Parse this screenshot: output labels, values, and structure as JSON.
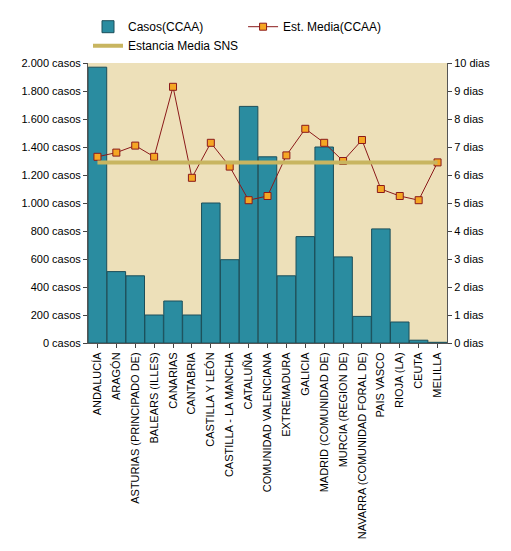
{
  "chart_data": {
    "type": "bar",
    "categories": [
      "ANDALUCÍA",
      "ARAGÓN",
      "ASTURIAS (PRINCIPADO DE)",
      "BALEARS (ILLES)",
      "CANARIAS",
      "CANTABRIA",
      "CASTILLA Y LEÓN",
      "CASTILLA - LA MANCHA",
      "CATALUÑA",
      "COMUNIDAD VALENCIANA",
      "EXTREMADURA",
      "GALICIA",
      "MADRID (COMUNIDAD DE)",
      "MURCIA (REGION DE)",
      "NAVARRA (COMUNIDAD FORAL DE)",
      "PAIS VASCO",
      "RIOJA (LA)",
      "CEUTA",
      "MELILLA"
    ],
    "series": [
      {
        "name": "Casos(CCAA)",
        "type": "bar",
        "color": "#2a8ca0",
        "values": [
          1970,
          510,
          480,
          200,
          300,
          200,
          1000,
          595,
          1690,
          1330,
          480,
          760,
          1400,
          615,
          190,
          815,
          150,
          20,
          5
        ]
      },
      {
        "name": "Est. Media(CCAA)",
        "type": "line",
        "axis": "y2",
        "color": "#8b1a1a",
        "marker": "square",
        "values": [
          6.65,
          6.8,
          7.05,
          6.65,
          9.15,
          5.9,
          7.15,
          6.3,
          5.1,
          5.25,
          6.7,
          7.65,
          7.15,
          6.5,
          7.25,
          5.5,
          5.25,
          5.1,
          6.45
        ]
      },
      {
        "name": "Estancia Media SNS",
        "type": "line",
        "axis": "y2",
        "color": "#c8b560",
        "line_style": "solid",
        "values": [
          6.45,
          6.45,
          6.45,
          6.45,
          6.45,
          6.45,
          6.45,
          6.45,
          6.45,
          6.45,
          6.45,
          6.45,
          6.45,
          6.45,
          6.45,
          6.45,
          6.45,
          6.45,
          6.45
        ]
      }
    ],
    "ylim": [
      0,
      2000
    ],
    "yticks": [
      {
        "value": 0,
        "label": "0 casos"
      },
      {
        "value": 200,
        "label": "200 casos"
      },
      {
        "value": 400,
        "label": "400 casos"
      },
      {
        "value": 600,
        "label": "600 casos"
      },
      {
        "value": 800,
        "label": "800 casos"
      },
      {
        "value": 1000,
        "label": "1.000 casos"
      },
      {
        "value": 1200,
        "label": "1.200 casos"
      },
      {
        "value": 1400,
        "label": "1.400 casos"
      },
      {
        "value": 1600,
        "label": "1.600 casos"
      },
      {
        "value": 1800,
        "label": "1.800 casos"
      },
      {
        "value": 2000,
        "label": "2.000 casos"
      }
    ],
    "y2lim": [
      0,
      10
    ],
    "y2ticks": [
      {
        "value": 0,
        "label": "0 dias"
      },
      {
        "value": 1,
        "label": "1 dias"
      },
      {
        "value": 2,
        "label": "2 dias"
      },
      {
        "value": 3,
        "label": "3 dias"
      },
      {
        "value": 4,
        "label": "4 dias"
      },
      {
        "value": 5,
        "label": "5 dias"
      },
      {
        "value": 6,
        "label": "6 dias"
      },
      {
        "value": 7,
        "label": "7 dias"
      },
      {
        "value": 8,
        "label": "8 dias"
      },
      {
        "value": 9,
        "label": "9 dias"
      },
      {
        "value": 10,
        "label": "10 dias"
      }
    ],
    "grid": false,
    "legend": "top-left"
  }
}
